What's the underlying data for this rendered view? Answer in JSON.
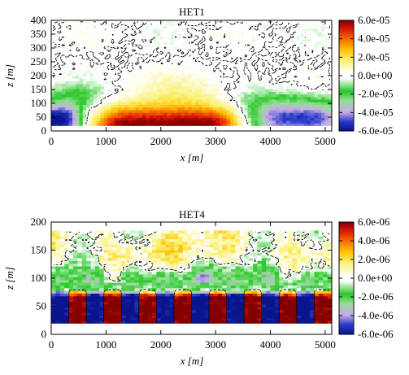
{
  "chart_data": [
    {
      "type": "heatmap",
      "title": "HET1",
      "xlabel": "x [m]",
      "ylabel": "z [m]",
      "xlim": [
        0,
        5120
      ],
      "ylim": [
        0,
        400
      ],
      "x_ticks": [
        "0",
        "1000",
        "2000",
        "3000",
        "4000",
        "5000"
      ],
      "y_ticks": [
        "0",
        "50",
        "100",
        "150",
        "200",
        "250",
        "300",
        "350",
        "400"
      ],
      "x_tick_values": [
        0,
        1000,
        2000,
        3000,
        4000,
        5000
      ],
      "y_tick_values": [
        0,
        50,
        100,
        150,
        200,
        250,
        300,
        350,
        400
      ],
      "data_extent": {
        "x": [
          0,
          5120
        ],
        "z": [
          20,
          400
        ]
      },
      "colorbar": {
        "min": -6e-05,
        "max": 6e-05,
        "tick_labels": [
          "6.0e-05",
          "4.0e-05",
          "2.0e-05",
          "0.0e+00",
          "-2.0e-05",
          "-4.0e-05",
          "-6.0e-05"
        ],
        "tick_values": [
          6e-05,
          4e-05,
          2e-05,
          0,
          -2e-05,
          -4e-05,
          -6e-05
        ]
      },
      "zero_contour": "dashed black",
      "features": [
        {
          "description": "strong positive core",
          "x_range": [
            900,
            3300
          ],
          "z_range": [
            20,
            100
          ],
          "peak": 6e-05
        },
        {
          "description": "negative region left",
          "x_range": [
            0,
            700
          ],
          "z_range": [
            20,
            100
          ],
          "min": -6e-05
        },
        {
          "description": "negative region right",
          "x_range": [
            3300,
            5120
          ],
          "z_range": [
            20,
            100
          ],
          "min": -4e-05
        }
      ]
    },
    {
      "type": "heatmap",
      "title": "HET4",
      "xlabel": "x [m]",
      "ylabel": "z [m]",
      "xlim": [
        0,
        5120
      ],
      "ylim": [
        0,
        200
      ],
      "x_ticks": [
        "0",
        "1000",
        "2000",
        "3000",
        "4000",
        "5000"
      ],
      "y_ticks": [
        "0",
        "50",
        "100",
        "150",
        "200"
      ],
      "x_tick_values": [
        0,
        1000,
        2000,
        3000,
        4000,
        5000
      ],
      "y_tick_values": [
        0,
        50,
        100,
        150,
        200
      ],
      "data_extent": {
        "x": [
          0,
          5120
        ],
        "z": [
          20,
          185
        ]
      },
      "colorbar": {
        "min": -6e-06,
        "max": 6e-06,
        "tick_labels": [
          "6.0e-06",
          "4.0e-06",
          "2.0e-06",
          "0.0e+00",
          "-2.0e-06",
          "-4.0e-06",
          "-6.0e-06"
        ],
        "tick_values": [
          6e-06,
          4e-06,
          2e-06,
          0,
          -2e-06,
          -4e-06,
          -6e-06
        ]
      },
      "zero_contour": "dashed black",
      "cells": {
        "period_m": 640,
        "count": 8,
        "positive_centers_m": [
          480,
          1120,
          1760,
          2400,
          3040,
          3680,
          4320,
          4960
        ],
        "negative_centers_m": [
          160,
          800,
          1440,
          2080,
          2720,
          3360,
          4000,
          4640
        ],
        "z_range": [
          20,
          75
        ]
      }
    }
  ]
}
